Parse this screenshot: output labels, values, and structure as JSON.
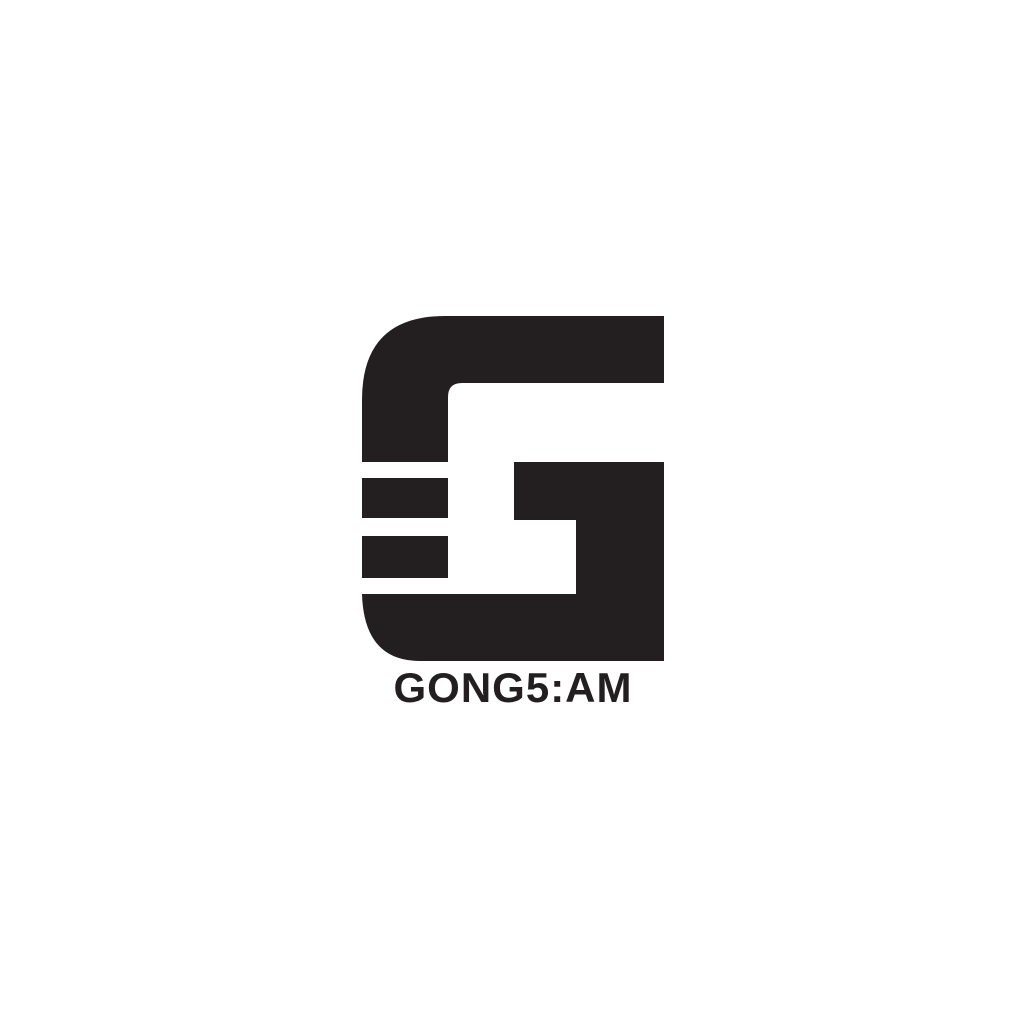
{
  "logo": {
    "mark_icon": "letter-g-striped-icon",
    "wordmark": "GONG5:AM",
    "color": "#231f20",
    "background": "#ffffff"
  }
}
